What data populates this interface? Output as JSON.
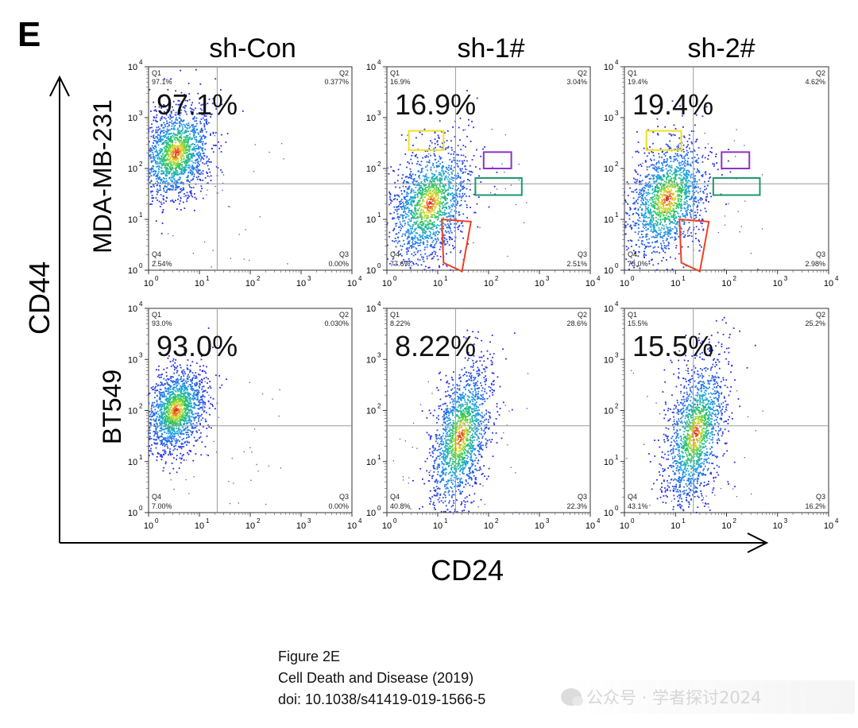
{
  "figure": {
    "panel_letter": "E",
    "x_axis_label": "CD24",
    "y_axis_label": "CD44",
    "columns": [
      "sh-Con",
      "sh-1#",
      "sh-2#"
    ],
    "rows": [
      "MDA-MB-231",
      "BT549"
    ]
  },
  "caption": {
    "line1": "Figure 2E",
    "line2": "Cell Death and Disease (2019)",
    "line3": "doi: 10.1038/s41419-019-1566-5"
  },
  "watermark": {
    "text": "公众号 · 学者探讨2024"
  },
  "chart_data": [
    {
      "type": "scatter",
      "row": "MDA-MB-231",
      "column": "sh-Con",
      "scale": "log",
      "xlim": [
        1,
        10000
      ],
      "ylim": [
        1,
        10000
      ],
      "quadrants": {
        "Q1": "97.1%",
        "Q2": "0.377%",
        "Q3": "0.00%",
        "Q4": "2.54%"
      },
      "big_label": "97.1%",
      "population": {
        "center": [
          3.5,
          200
        ],
        "spread_x_decades": 0.35,
        "spread_y_decades": 0.45,
        "tilt": 0.45
      },
      "gates": []
    },
    {
      "type": "scatter",
      "row": "MDA-MB-231",
      "column": "sh-1#",
      "scale": "log",
      "xlim": [
        1,
        10000
      ],
      "ylim": [
        1,
        10000
      ],
      "quadrants": {
        "Q1": "16.9%",
        "Q2": "3.04%",
        "Q3": "2.51%",
        "Q4": "77.6%"
      },
      "big_label": "16.9%",
      "population": {
        "center": [
          7,
          20
        ],
        "spread_x_decades": 0.4,
        "spread_y_decades": 0.55,
        "tilt": 0.6
      },
      "gates": [
        {
          "shape": "rect",
          "color": "#f0e020",
          "x": [
            2.7,
            13
          ],
          "y": [
            230,
            550
          ]
        },
        {
          "shape": "rect",
          "color": "#9030c8",
          "x": [
            80,
            280
          ],
          "y": [
            100,
            210
          ]
        },
        {
          "shape": "rect",
          "color": "#1a9a6a",
          "x": [
            55,
            450
          ],
          "y": [
            30,
            65
          ]
        },
        {
          "shape": "poly",
          "color": "#f04020",
          "points": [
            [
              12,
              10
            ],
            [
              45,
              9
            ],
            [
              30,
              0.95
            ],
            [
              13,
              1.4
            ]
          ]
        }
      ]
    },
    {
      "type": "scatter",
      "row": "MDA-MB-231",
      "column": "sh-2#",
      "scale": "log",
      "xlim": [
        1,
        10000
      ],
      "ylim": [
        1,
        10000
      ],
      "quadrants": {
        "Q1": "19.4%",
        "Q2": "4.62%",
        "Q3": "2.98%",
        "Q4": "73.0%"
      },
      "big_label": "19.4%",
      "population": {
        "center": [
          7,
          25
        ],
        "spread_x_decades": 0.4,
        "spread_y_decades": 0.55,
        "tilt": 0.6
      },
      "gates": [
        {
          "shape": "rect",
          "color": "#f0e020",
          "x": [
            2.7,
            13
          ],
          "y": [
            230,
            550
          ]
        },
        {
          "shape": "rect",
          "color": "#9030c8",
          "x": [
            80,
            280
          ],
          "y": [
            100,
            210
          ]
        },
        {
          "shape": "rect",
          "color": "#1a9a6a",
          "x": [
            55,
            450
          ],
          "y": [
            30,
            65
          ]
        },
        {
          "shape": "poly",
          "color": "#f04020",
          "points": [
            [
              12,
              10
            ],
            [
              45,
              9
            ],
            [
              30,
              0.95
            ],
            [
              13,
              1.4
            ]
          ]
        }
      ]
    },
    {
      "type": "scatter",
      "row": "BT549",
      "column": "sh-Con",
      "scale": "log",
      "xlim": [
        1,
        10000
      ],
      "ylim": [
        1,
        10000
      ],
      "quadrants": {
        "Q1": "93.0%",
        "Q2": "0.030%",
        "Q3": "0.00%",
        "Q4": "7.00%"
      },
      "big_label": "93.0%",
      "population": {
        "center": [
          3.5,
          100
        ],
        "spread_x_decades": 0.3,
        "spread_y_decades": 0.4,
        "tilt": 0.4
      },
      "gates": []
    },
    {
      "type": "scatter",
      "row": "BT549",
      "column": "sh-1#",
      "scale": "log",
      "xlim": [
        1,
        10000
      ],
      "ylim": [
        1,
        10000
      ],
      "quadrants": {
        "Q1": "8.22%",
        "Q2": "28.6%",
        "Q3": "22.3%",
        "Q4": "40.8%"
      },
      "big_label": "8.22%",
      "population": {
        "center": [
          28,
          30
        ],
        "spread_x_decades": 0.3,
        "spread_y_decades": 0.65,
        "tilt": 0.8
      },
      "gates": []
    },
    {
      "type": "scatter",
      "row": "BT549",
      "column": "sh-2#",
      "scale": "log",
      "xlim": [
        1,
        10000
      ],
      "ylim": [
        1,
        10000
      ],
      "quadrants": {
        "Q1": "15.5%",
        "Q2": "25.2%",
        "Q3": "16.2%",
        "Q4": "43.1%"
      },
      "big_label": "15.5%",
      "population": {
        "center": [
          25,
          35
        ],
        "spread_x_decades": 0.3,
        "spread_y_decades": 0.65,
        "tilt": 0.8
      },
      "gates": []
    }
  ]
}
